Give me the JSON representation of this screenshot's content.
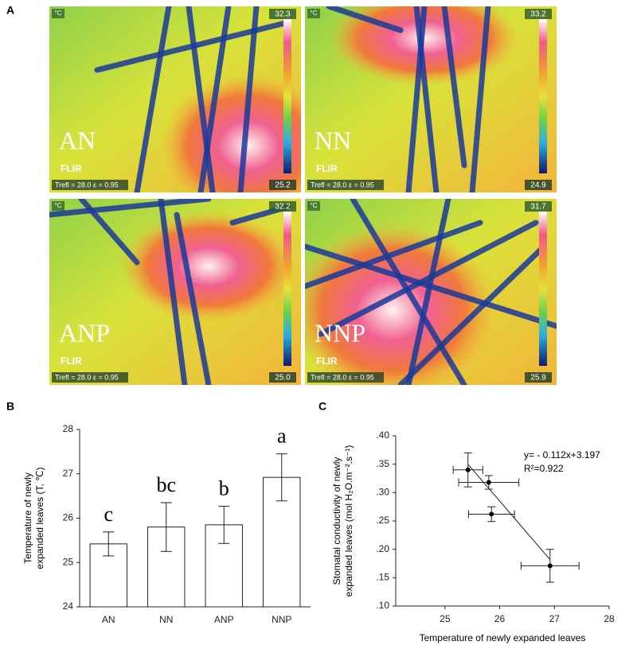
{
  "panel_labels": [
    "A",
    "B",
    "C"
  ],
  "thermal_images": [
    {
      "label": "AN",
      "unit": "°C",
      "max": "32.3",
      "min": "25.2",
      "brand": "FLIR",
      "info": "Trefl = 28.0  ε = 0.95"
    },
    {
      "label": "NN",
      "unit": "°C",
      "max": "33.2",
      "min": "24.9",
      "brand": "FLIR",
      "info": "Trefl = 28.0  ε = 0.95"
    },
    {
      "label": "ANP",
      "unit": "°C",
      "max": "32.2",
      "min": "25.0",
      "brand": "FLIR",
      "info": "Trefl = 28.0  ε = 0.95"
    },
    {
      "label": "NNP",
      "unit": "°C",
      "max": "31.7",
      "min": "25.9",
      "brand": "FLIR",
      "info": "Trefl = 28.0  ε = 0.95"
    }
  ],
  "chart_data": [
    {
      "type": "bar",
      "y_label": [
        "Temperature of newly",
        "expanded leaves (T, ℃)"
      ],
      "categories": [
        "AN",
        "NN",
        "ANP",
        "NNP"
      ],
      "values": [
        25.42,
        25.8,
        25.85,
        26.92
      ],
      "errors": [
        0.27,
        0.55,
        0.42,
        0.53
      ],
      "annotations": [
        "c",
        "bc",
        "b",
        "a"
      ],
      "color": "#ffffff",
      "ylim": [
        24,
        28
      ],
      "yticks": [
        24,
        25,
        26,
        27,
        28
      ]
    },
    {
      "type": "scatter",
      "x_label": "Temperature of newly expanded leaves",
      "y_label": [
        "Stomatal conductivity of newly",
        "expanded leaves (mol H₂O.m⁻².s⁻¹)"
      ],
      "x": [
        25.42,
        25.8,
        25.85,
        26.92
      ],
      "y": [
        0.34,
        0.318,
        0.262,
        0.171
      ],
      "x_err": [
        0.27,
        0.55,
        0.42,
        0.53
      ],
      "y_err": [
        0.03,
        0.012,
        0.013,
        0.029
      ],
      "fit": {
        "slope": -0.112,
        "intercept": 3.197
      },
      "annotations": [
        "y= - 0.112x+3.197",
        "R²=0.922"
      ],
      "color": "#000000",
      "xlim": [
        24.1,
        28
      ],
      "xticks": [
        25,
        26,
        27,
        28
      ],
      "ylim": [
        0.1,
        0.4
      ],
      "yticks": [
        {
          "value": 0.1,
          "label": ".10"
        },
        {
          "value": 0.15,
          "label": ".15"
        },
        {
          "value": 0.2,
          "label": ".20"
        },
        {
          "value": 0.25,
          "label": ".25"
        },
        {
          "value": 0.3,
          "label": ".30"
        },
        {
          "value": 0.35,
          "label": ".35"
        },
        {
          "value": 0.4,
          "label": ".40"
        }
      ]
    }
  ]
}
